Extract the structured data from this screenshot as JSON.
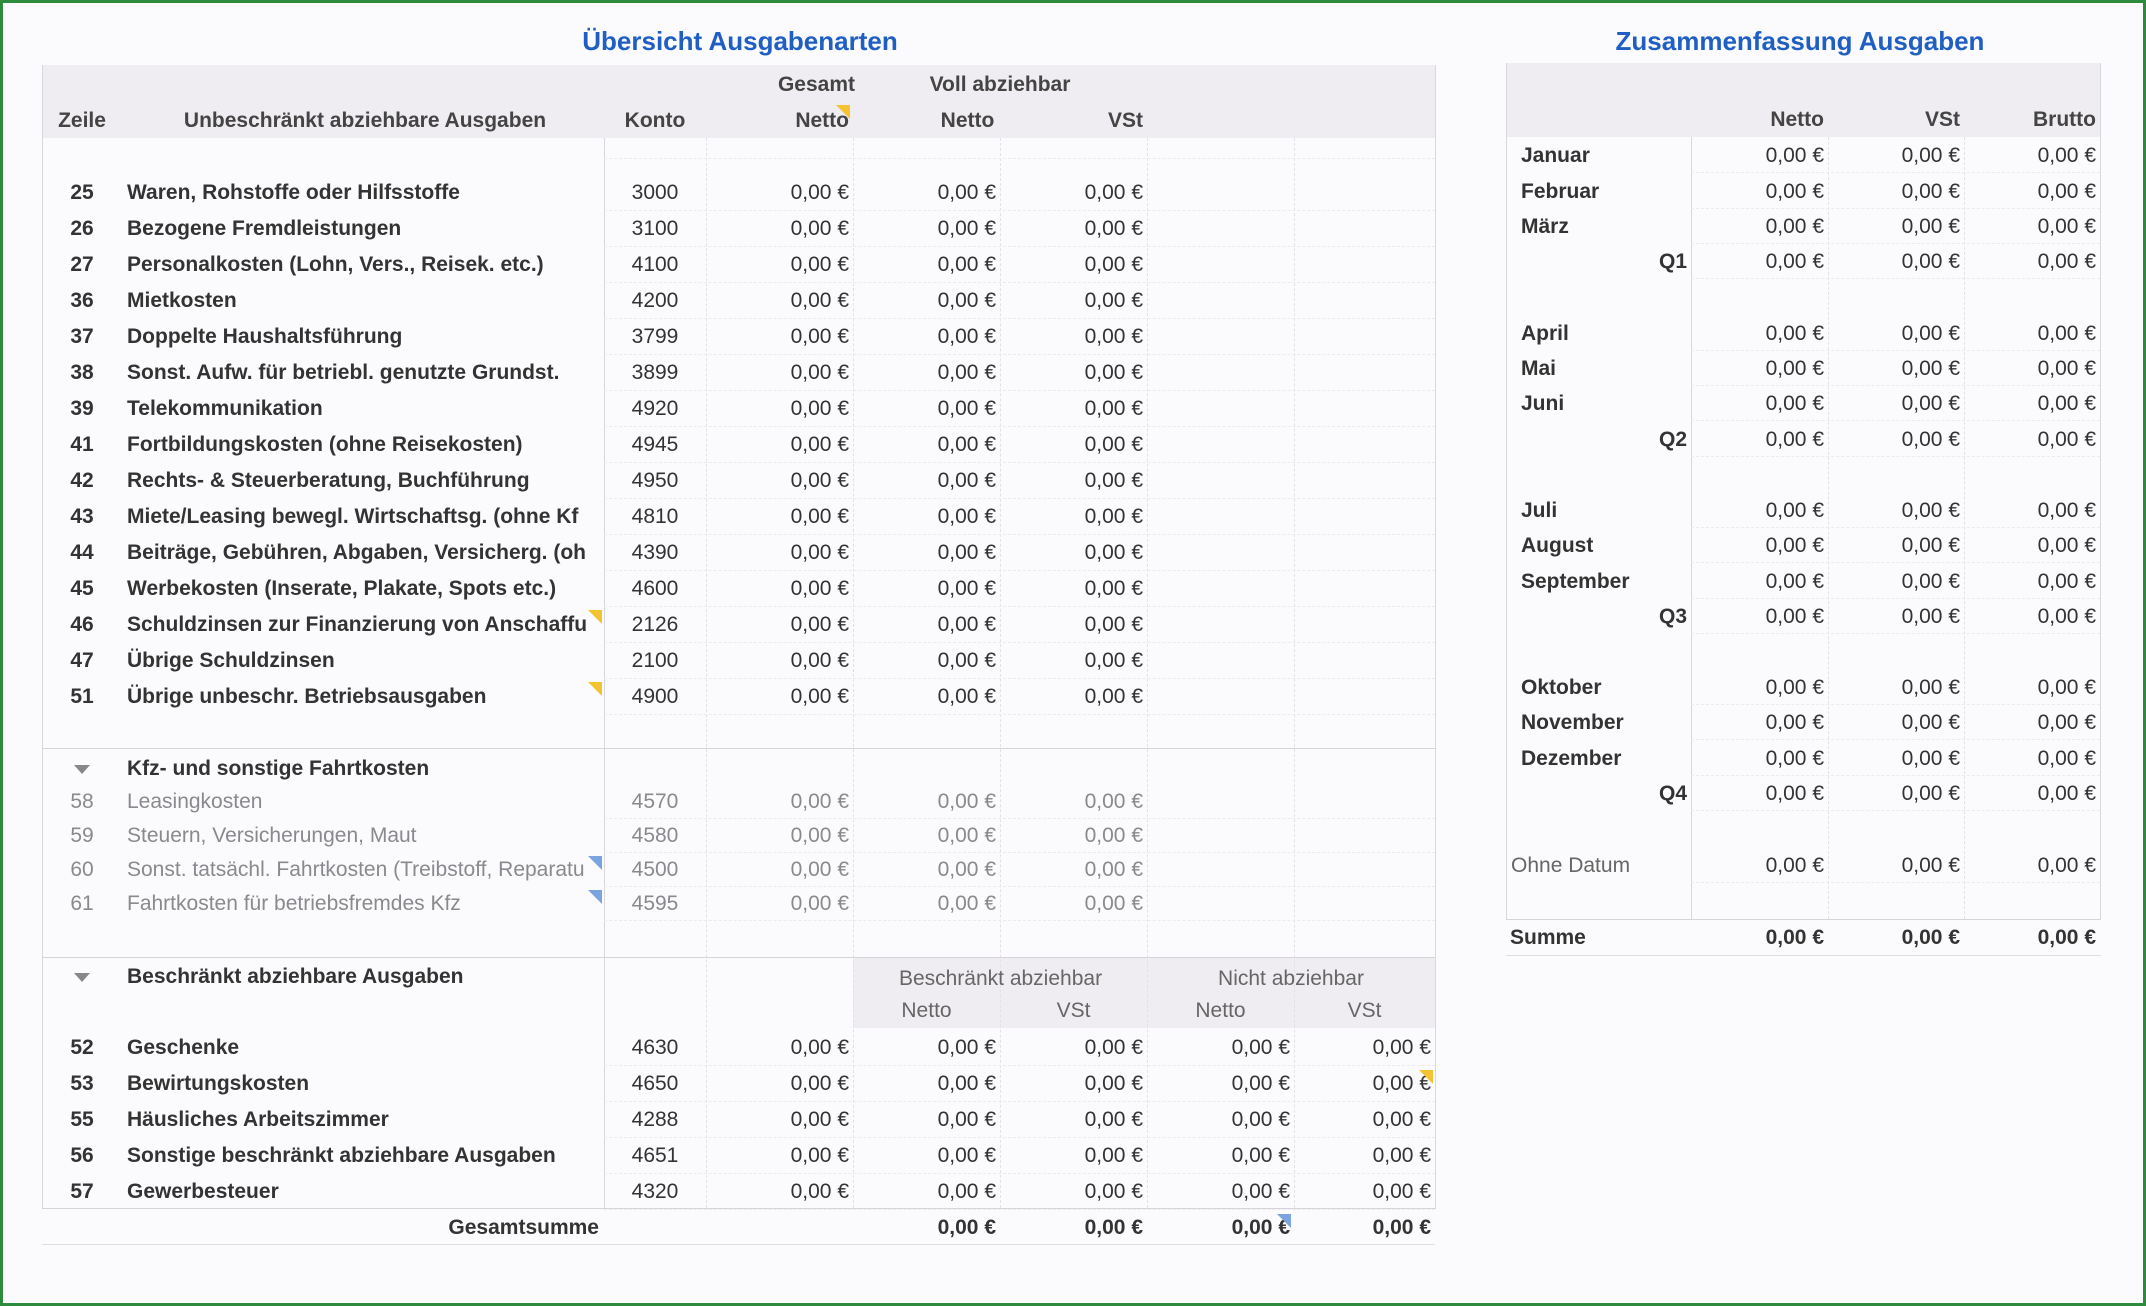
{
  "left_title": "Übersicht Ausgabenarten",
  "right_title": "Zusammenfassung Ausgaben",
  "left_header": {
    "zeile": "Zeile",
    "unbeschraenkt": "Unbeschränkt abziehbare Ausgaben",
    "konto": "Konto",
    "gesamt": "Gesamt",
    "gesamt_netto": "Netto",
    "voll": "Voll abziehbar",
    "voll_netto": "Netto",
    "voll_vst": "VSt"
  },
  "unbeschraenkt_rows": [
    {
      "zeile": "25",
      "label": "Waren, Rohstoffe oder Hilfsstoffe",
      "konto": "3000",
      "gesamt": "0,00 €",
      "netto": "0,00 €",
      "vst": "0,00 €"
    },
    {
      "zeile": "26",
      "label": "Bezogene Fremdleistungen",
      "konto": "3100",
      "gesamt": "0,00 €",
      "netto": "0,00 €",
      "vst": "0,00 €"
    },
    {
      "zeile": "27",
      "label": "Personalkosten (Lohn, Vers., Reisek. etc.)",
      "konto": "4100",
      "gesamt": "0,00 €",
      "netto": "0,00 €",
      "vst": "0,00 €"
    },
    {
      "zeile": "36",
      "label": "Mietkosten",
      "konto": "4200",
      "gesamt": "0,00 €",
      "netto": "0,00 €",
      "vst": "0,00 €"
    },
    {
      "zeile": "37",
      "label": "Doppelte Haushaltsführung",
      "konto": "3799",
      "gesamt": "0,00 €",
      "netto": "0,00 €",
      "vst": "0,00 €"
    },
    {
      "zeile": "38",
      "label": "Sonst. Aufw. für betriebl. genutzte Grundst.",
      "konto": "3899",
      "gesamt": "0,00 €",
      "netto": "0,00 €",
      "vst": "0,00 €"
    },
    {
      "zeile": "39",
      "label": "Telekommunikation",
      "konto": "4920",
      "gesamt": "0,00 €",
      "netto": "0,00 €",
      "vst": "0,00 €"
    },
    {
      "zeile": "41",
      "label": "Fortbildungskosten (ohne Reisekosten)",
      "konto": "4945",
      "gesamt": "0,00 €",
      "netto": "0,00 €",
      "vst": "0,00 €"
    },
    {
      "zeile": "42",
      "label": "Rechts- & Steuerberatung, Buchführung",
      "konto": "4950",
      "gesamt": "0,00 €",
      "netto": "0,00 €",
      "vst": "0,00 €"
    },
    {
      "zeile": "43",
      "label": "Miete/Leasing bewegl. Wirtschaftsg. (ohne Kf",
      "konto": "4810",
      "gesamt": "0,00 €",
      "netto": "0,00 €",
      "vst": "0,00 €"
    },
    {
      "zeile": "44",
      "label": "Beiträge, Gebühren, Abgaben, Versicherg. (oh",
      "konto": "4390",
      "gesamt": "0,00 €",
      "netto": "0,00 €",
      "vst": "0,00 €"
    },
    {
      "zeile": "45",
      "label": "Werbekosten (Inserate, Plakate, Spots etc.)",
      "konto": "4600",
      "gesamt": "0,00 €",
      "netto": "0,00 €",
      "vst": "0,00 €"
    },
    {
      "zeile": "46",
      "label": "Schuldzinsen zur Finanzierung von Anschaffu",
      "konto": "2126",
      "gesamt": "0,00 €",
      "netto": "0,00 €",
      "vst": "0,00 €"
    },
    {
      "zeile": "47",
      "label": "Übrige Schuldzinsen",
      "konto": "2100",
      "gesamt": "0,00 €",
      "netto": "0,00 €",
      "vst": "0,00 €"
    },
    {
      "zeile": "51",
      "label": "Übrige unbeschr. Betriebsausgaben",
      "konto": "4900",
      "gesamt": "0,00 €",
      "netto": "0,00 €",
      "vst": "0,00 €"
    }
  ],
  "kfz": {
    "header": "Kfz- und sonstige Fahrtkosten",
    "rows": [
      {
        "zeile": "58",
        "label": "Leasingkosten",
        "konto": "4570",
        "gesamt": "0,00 €",
        "netto": "0,00 €",
        "vst": "0,00 €"
      },
      {
        "zeile": "59",
        "label": "Steuern, Versicherungen, Maut",
        "konto": "4580",
        "gesamt": "0,00 €",
        "netto": "0,00 €",
        "vst": "0,00 €"
      },
      {
        "zeile": "60",
        "label": "Sonst. tatsächl. Fahrtkosten (Treibstoff, Reparatu",
        "konto": "4500",
        "gesamt": "0,00 €",
        "netto": "0,00 €",
        "vst": "0,00 €"
      },
      {
        "zeile": "61",
        "label": "Fahrtkosten für betriebsfremdes Kfz",
        "konto": "4595",
        "gesamt": "0,00 €",
        "netto": "0,00 €",
        "vst": "0,00 €"
      }
    ]
  },
  "beschraenkt": {
    "header": "Beschränkt abziehbare Ausgaben",
    "col_beschraenkt": "Beschränkt abziehbar",
    "col_nicht": "Nicht abziehbar",
    "netto": "Netto",
    "vst": "VSt",
    "rows": [
      {
        "zeile": "52",
        "label": "Geschenke",
        "konto": "4630",
        "gesamt": "0,00 €",
        "b_netto": "0,00 €",
        "b_vst": "0,00 €",
        "n_netto": "0,00 €",
        "n_vst": "0,00 €"
      },
      {
        "zeile": "53",
        "label": "Bewirtungskosten",
        "konto": "4650",
        "gesamt": "0,00 €",
        "b_netto": "0,00 €",
        "b_vst": "0,00 €",
        "n_netto": "0,00 €",
        "n_vst": "0,00 €"
      },
      {
        "zeile": "55",
        "label": "Häusliches Arbeitszimmer",
        "konto": "4288",
        "gesamt": "0,00 €",
        "b_netto": "0,00 €",
        "b_vst": "0,00 €",
        "n_netto": "0,00 €",
        "n_vst": "0,00 €"
      },
      {
        "zeile": "56",
        "label": "Sonstige beschränkt abziehbare Ausgaben",
        "konto": "4651",
        "gesamt": "0,00 €",
        "b_netto": "0,00 €",
        "b_vst": "0,00 €",
        "n_netto": "0,00 €",
        "n_vst": "0,00 €"
      },
      {
        "zeile": "57",
        "label": "Gewerbesteuer",
        "konto": "4320",
        "gesamt": "0,00 €",
        "b_netto": "0,00 €",
        "b_vst": "0,00 €",
        "n_netto": "0,00 €",
        "n_vst": "0,00 €"
      }
    ]
  },
  "gesamtsumme": {
    "label": "Gesamtsumme",
    "b_netto": "0,00 €",
    "b_vst": "0,00 €",
    "n_netto": "0,00 €",
    "n_vst": "0,00 €"
  },
  "summary_header": {
    "netto": "Netto",
    "vst": "VSt",
    "brutto": "Brutto"
  },
  "summary_rows": [
    {
      "label": "Januar",
      "netto": "0,00 €",
      "vst": "0,00 €",
      "brutto": "0,00 €"
    },
    {
      "label": "Februar",
      "netto": "0,00 €",
      "vst": "0,00 €",
      "brutto": "0,00 €"
    },
    {
      "label": "März",
      "netto": "0,00 €",
      "vst": "0,00 €",
      "brutto": "0,00 €"
    },
    {
      "label": "Q1",
      "netto": "0,00 €",
      "vst": "0,00 €",
      "brutto": "0,00 €"
    },
    {
      "label": "April",
      "netto": "0,00 €",
      "vst": "0,00 €",
      "brutto": "0,00 €"
    },
    {
      "label": "Mai",
      "netto": "0,00 €",
      "vst": "0,00 €",
      "brutto": "0,00 €"
    },
    {
      "label": "Juni",
      "netto": "0,00 €",
      "vst": "0,00 €",
      "brutto": "0,00 €"
    },
    {
      "label": "Q2",
      "netto": "0,00 €",
      "vst": "0,00 €",
      "brutto": "0,00 €"
    },
    {
      "label": "Juli",
      "netto": "0,00 €",
      "vst": "0,00 €",
      "brutto": "0,00 €"
    },
    {
      "label": "August",
      "netto": "0,00 €",
      "vst": "0,00 €",
      "brutto": "0,00 €"
    },
    {
      "label": "September",
      "netto": "0,00 €",
      "vst": "0,00 €",
      "brutto": "0,00 €"
    },
    {
      "label": "Q3",
      "netto": "0,00 €",
      "vst": "0,00 €",
      "brutto": "0,00 €"
    },
    {
      "label": "Oktober",
      "netto": "0,00 €",
      "vst": "0,00 €",
      "brutto": "0,00 €"
    },
    {
      "label": "November",
      "netto": "0,00 €",
      "vst": "0,00 €",
      "brutto": "0,00 €"
    },
    {
      "label": "Dezember",
      "netto": "0,00 €",
      "vst": "0,00 €",
      "brutto": "0,00 €"
    },
    {
      "label": "Q4",
      "netto": "0,00 €",
      "vst": "0,00 €",
      "brutto": "0,00 €"
    },
    {
      "label": "Ohne Datum",
      "netto": "0,00 €",
      "vst": "0,00 €",
      "brutto": "0,00 €"
    }
  ],
  "summary_total": {
    "label": "Summe",
    "netto": "0,00 €",
    "vst": "0,00 €",
    "brutto": "0,00 €"
  },
  "colors": {
    "title": "#1f5fc4",
    "border": "#2e8b3e",
    "comment_yellow": "#f4c430",
    "comment_blue": "#7aa3e0"
  }
}
